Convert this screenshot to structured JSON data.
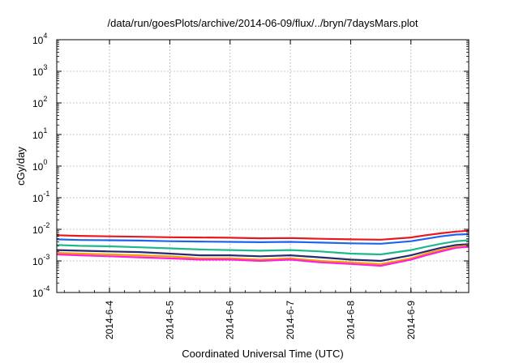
{
  "chart_data": {
    "type": "line",
    "title": "/data/run/goesPlots/archive/2014-06-09/flux/../bryn/7daysMars.plot",
    "xlabel": "Coordinated Universal Time (UTC)",
    "ylabel": "cGy/day",
    "x_range": [
      "2014-06-03 03:00",
      "2014-06-09 23:00"
    ],
    "x_ticks": [
      "2014-6-4",
      "2014-6-5",
      "2014-6-6",
      "2014-6-7",
      "2014-6-8",
      "2014-6-9"
    ],
    "x_tick_dates": [
      "2014-06-04",
      "2014-06-05",
      "2014-06-06",
      "2014-06-07",
      "2014-06-08",
      "2014-06-09"
    ],
    "y_scale": "log",
    "ylim": [
      0.0001,
      10000
    ],
    "y_ticks": [
      {
        "base": "10",
        "exp": "-4",
        "value": 0.0001
      },
      {
        "base": "10",
        "exp": "-3",
        "value": 0.001
      },
      {
        "base": "10",
        "exp": "-2",
        "value": 0.01
      },
      {
        "base": "10",
        "exp": "-1",
        "value": 0.1
      },
      {
        "base": "10",
        "exp": "0",
        "value": 1
      },
      {
        "base": "10",
        "exp": "1",
        "value": 10
      },
      {
        "base": "10",
        "exp": "2",
        "value": 100
      },
      {
        "base": "10",
        "exp": "3",
        "value": 1000
      },
      {
        "base": "10",
        "exp": "4",
        "value": 10000
      }
    ],
    "grid": true,
    "series": [
      {
        "color": "#e8191e",
        "x": [
          "2014-06-03 03:00",
          "2014-06-03 12:00",
          "2014-06-04 00:00",
          "2014-06-04 12:00",
          "2014-06-05 00:00",
          "2014-06-05 12:00",
          "2014-06-06 00:00",
          "2014-06-06 12:00",
          "2014-06-07 00:00",
          "2014-06-07 12:00",
          "2014-06-08 00:00",
          "2014-06-08 12:00",
          "2014-06-09 00:00",
          "2014-06-09 06:00",
          "2014-06-09 12:00",
          "2014-06-09 18:00",
          "2014-06-09 23:00"
        ],
        "y": [
          0.0065,
          0.0062,
          0.006,
          0.0058,
          0.0056,
          0.0055,
          0.0054,
          0.0052,
          0.0053,
          0.005,
          0.0048,
          0.0047,
          0.0055,
          0.0065,
          0.0075,
          0.0085,
          0.009
        ]
      },
      {
        "color": "#1e64f0",
        "x": [
          "2014-06-03 03:00",
          "2014-06-03 12:00",
          "2014-06-04 00:00",
          "2014-06-04 12:00",
          "2014-06-05 00:00",
          "2014-06-05 12:00",
          "2014-06-06 00:00",
          "2014-06-06 12:00",
          "2014-06-07 00:00",
          "2014-06-07 12:00",
          "2014-06-08 00:00",
          "2014-06-08 12:00",
          "2014-06-09 00:00",
          "2014-06-09 06:00",
          "2014-06-09 12:00",
          "2014-06-09 18:00",
          "2014-06-09 23:00"
        ],
        "y": [
          0.0048,
          0.0046,
          0.0045,
          0.0044,
          0.0042,
          0.0041,
          0.004,
          0.0039,
          0.004,
          0.0038,
          0.0036,
          0.0035,
          0.0042,
          0.005,
          0.006,
          0.0068,
          0.007
        ]
      },
      {
        "color": "#1eb88c",
        "x": [
          "2014-06-03 03:00",
          "2014-06-03 12:00",
          "2014-06-04 00:00",
          "2014-06-04 12:00",
          "2014-06-05 00:00",
          "2014-06-05 12:00",
          "2014-06-06 00:00",
          "2014-06-06 12:00",
          "2014-06-07 00:00",
          "2014-06-07 12:00",
          "2014-06-08 00:00",
          "2014-06-08 12:00",
          "2014-06-09 00:00",
          "2014-06-09 06:00",
          "2014-06-09 12:00",
          "2014-06-09 18:00",
          "2014-06-09 23:00"
        ],
        "y": [
          0.0032,
          0.003,
          0.0029,
          0.0027,
          0.0025,
          0.0023,
          0.0022,
          0.0021,
          0.0022,
          0.002,
          0.0017,
          0.0016,
          0.0022,
          0.0028,
          0.0035,
          0.0042,
          0.0045
        ]
      },
      {
        "color": "#2a2a70",
        "x": [
          "2014-06-03 03:00",
          "2014-06-03 12:00",
          "2014-06-04 00:00",
          "2014-06-04 12:00",
          "2014-06-05 00:00",
          "2014-06-05 12:00",
          "2014-06-06 00:00",
          "2014-06-06 12:00",
          "2014-06-07 00:00",
          "2014-06-07 12:00",
          "2014-06-08 00:00",
          "2014-06-08 12:00",
          "2014-06-09 00:00",
          "2014-06-09 06:00",
          "2014-06-09 12:00",
          "2014-06-09 18:00",
          "2014-06-09 23:00"
        ],
        "y": [
          0.0022,
          0.0021,
          0.002,
          0.0019,
          0.0017,
          0.0015,
          0.0015,
          0.0014,
          0.0015,
          0.0013,
          0.0011,
          0.001,
          0.0015,
          0.002,
          0.0026,
          0.0032,
          0.0034
        ]
      },
      {
        "color": "#f0a000",
        "x": [
          "2014-06-03 03:00",
          "2014-06-03 12:00",
          "2014-06-04 00:00",
          "2014-06-04 12:00",
          "2014-06-05 00:00",
          "2014-06-05 12:00",
          "2014-06-06 00:00",
          "2014-06-06 12:00",
          "2014-06-07 00:00",
          "2014-06-07 12:00",
          "2014-06-08 00:00",
          "2014-06-08 12:00",
          "2014-06-09 00:00",
          "2014-06-09 06:00",
          "2014-06-09 12:00",
          "2014-06-09 18:00",
          "2014-06-09 23:00"
        ],
        "y": [
          0.0018,
          0.0017,
          0.0016,
          0.0015,
          0.0014,
          0.0012,
          0.0012,
          0.0011,
          0.0012,
          0.001,
          0.0009,
          0.0008,
          0.0012,
          0.0017,
          0.0022,
          0.0028,
          0.003
        ]
      },
      {
        "color": "#ff20d8",
        "x": [
          "2014-06-03 03:00",
          "2014-06-03 12:00",
          "2014-06-04 00:00",
          "2014-06-04 12:00",
          "2014-06-05 00:00",
          "2014-06-05 12:00",
          "2014-06-06 00:00",
          "2014-06-06 12:00",
          "2014-06-07 00:00",
          "2014-06-07 12:00",
          "2014-06-08 00:00",
          "2014-06-08 12:00",
          "2014-06-09 00:00",
          "2014-06-09 06:00",
          "2014-06-09 12:00",
          "2014-06-09 18:00",
          "2014-06-09 23:00"
        ],
        "y": [
          0.0016,
          0.0015,
          0.0014,
          0.0013,
          0.0012,
          0.0011,
          0.0011,
          0.001,
          0.0011,
          0.0009,
          0.0008,
          0.0007,
          0.0011,
          0.0015,
          0.002,
          0.0026,
          0.0028
        ]
      }
    ]
  }
}
